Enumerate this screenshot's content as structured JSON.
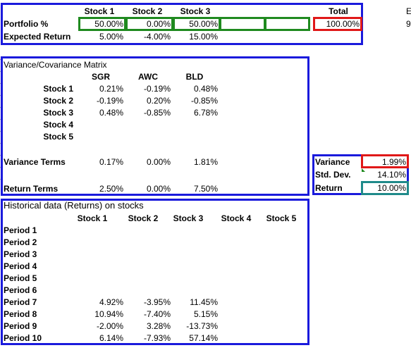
{
  "top": {
    "headers": [
      "Stock 1",
      "Stock 2",
      "Stock 3",
      "Total"
    ],
    "portfolio_label": "Portfolio %",
    "portfolio_values": [
      "50.00%",
      "0.00%",
      "50.00%"
    ],
    "portfolio_total": "100.00%",
    "expected_label": "Expected Return",
    "expected_values": [
      "5.00%",
      "-4.00%",
      "15.00%"
    ]
  },
  "edge": {
    "e1": "E",
    "e2": "9"
  },
  "matrix": {
    "title": "Variance/Covariance Matrix",
    "col_headers": [
      "SGR",
      "AWC",
      "BLD"
    ],
    "rows": [
      {
        "label": "Stock 1",
        "values": [
          "0.21%",
          "-0.19%",
          "0.48%"
        ]
      },
      {
        "label": "Stock 2",
        "values": [
          "-0.19%",
          "0.20%",
          "-0.85%"
        ]
      },
      {
        "label": "Stock 3",
        "values": [
          "0.48%",
          "-0.85%",
          "6.78%"
        ]
      },
      {
        "label": "Stock 4",
        "values": [
          "",
          "",
          ""
        ]
      },
      {
        "label": "Stock 5",
        "values": [
          "",
          "",
          ""
        ]
      }
    ],
    "variance_terms_label": "Variance Terms",
    "variance_terms": [
      "0.17%",
      "0.00%",
      "1.81%"
    ],
    "return_terms_label": "Return Terms",
    "return_terms": [
      "2.50%",
      "0.00%",
      "7.50%"
    ]
  },
  "summary": {
    "variance_label": "Variance",
    "variance": "1.99%",
    "stddev_label": "Std. Dev.",
    "stddev": "14.10%",
    "return_label": "Return",
    "return": "10.00%"
  },
  "history": {
    "title": "Historical data (Returns) on stocks",
    "headers": [
      "Stock 1",
      "Stock 2",
      "Stock 3",
      "Stock 4",
      "Stock 5"
    ],
    "rows": [
      {
        "label": "Period 1",
        "values": [
          "",
          "",
          ""
        ]
      },
      {
        "label": "Period 2",
        "values": [
          "",
          "",
          ""
        ]
      },
      {
        "label": "Period 3",
        "values": [
          "",
          "",
          ""
        ]
      },
      {
        "label": "Period 4",
        "values": [
          "",
          "",
          ""
        ]
      },
      {
        "label": "Period 5",
        "values": [
          "",
          "",
          ""
        ]
      },
      {
        "label": "Period 6",
        "values": [
          "",
          "",
          ""
        ]
      },
      {
        "label": "Period 7",
        "values": [
          "4.92%",
          "-3.95%",
          "11.45%"
        ]
      },
      {
        "label": "Period 8",
        "values": [
          "10.94%",
          "-7.40%",
          "5.15%"
        ]
      },
      {
        "label": "Period 9",
        "values": [
          "-2.00%",
          "3.28%",
          "-13.73%"
        ]
      },
      {
        "label": "Period 10",
        "values": [
          "6.14%",
          "-7.93%",
          "57.14%"
        ]
      }
    ]
  }
}
